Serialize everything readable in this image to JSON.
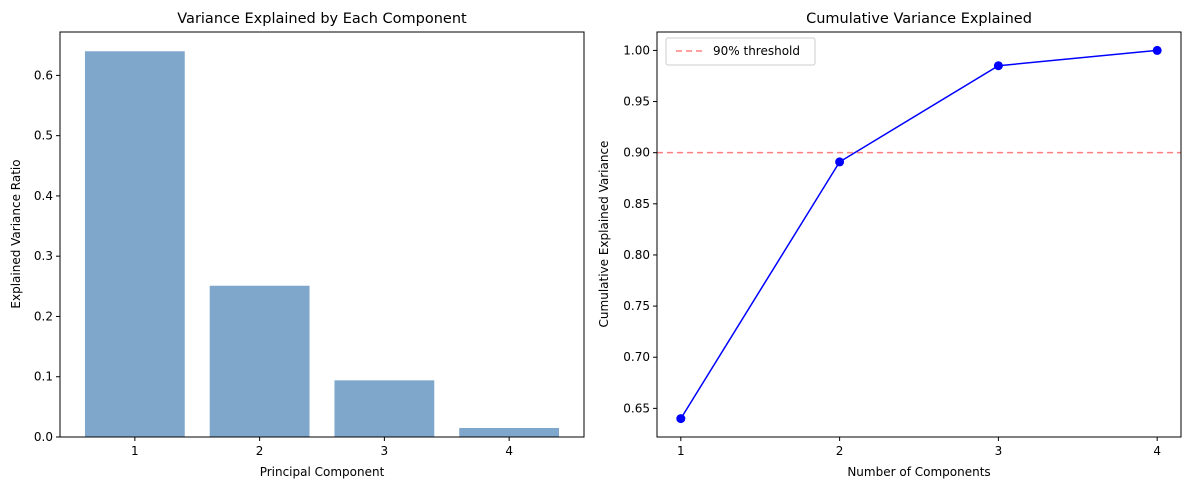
{
  "chart_data": [
    {
      "type": "bar",
      "title": "Variance Explained by Each Component",
      "xlabel": "Principal Component",
      "ylabel": "Explained Variance Ratio",
      "categories": [
        "1",
        "2",
        "3",
        "4"
      ],
      "values": [
        0.64,
        0.251,
        0.094,
        0.015
      ],
      "ylim": [
        0,
        0.672
      ],
      "yticks": [
        0.0,
        0.1,
        0.2,
        0.3,
        0.4,
        0.5,
        0.6
      ],
      "ytick_labels": [
        "0.0",
        "0.1",
        "0.2",
        "0.3",
        "0.4",
        "0.5",
        "0.6"
      ],
      "bar_color": "#7ea7cb",
      "grid": false
    },
    {
      "type": "line",
      "title": "Cumulative Variance Explained",
      "xlabel": "Number of Components",
      "ylabel": "Cumulative Explained Variance",
      "x": [
        1,
        2,
        3,
        4
      ],
      "xtick_labels": [
        "1",
        "2",
        "3",
        "4"
      ],
      "y": [
        0.64,
        0.891,
        0.985,
        1.0
      ],
      "xlim": [
        0.85,
        4.15
      ],
      "ylim": [
        0.622,
        1.018
      ],
      "yticks": [
        0.65,
        0.7,
        0.75,
        0.8,
        0.85,
        0.9,
        0.95,
        1.0
      ],
      "ytick_labels": [
        "0.65",
        "0.70",
        "0.75",
        "0.80",
        "0.85",
        "0.90",
        "0.95",
        "1.00"
      ],
      "line_color": "#0000ff",
      "threshold": {
        "value": 0.9,
        "label": "90% threshold",
        "color": "#ff8080",
        "style": "dashed"
      },
      "legend_position": "top-left",
      "grid": false
    }
  ]
}
